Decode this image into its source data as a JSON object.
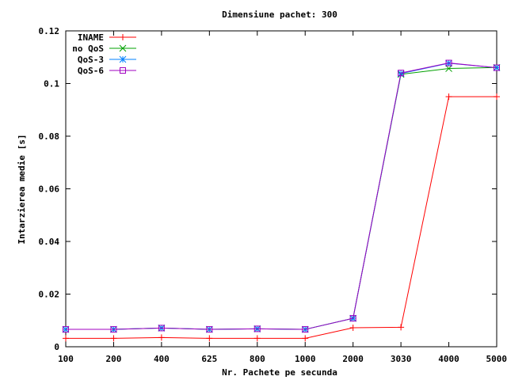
{
  "chart_data": {
    "type": "line",
    "title": "Dimensiune pachet: 300",
    "xlabel": "Nr. Pachete pe secunda",
    "ylabel": "Intarzierea medie [s]",
    "categories": [
      "100",
      "200",
      "400",
      "625",
      "800",
      "1000",
      "2000",
      "3030",
      "4000",
      "5000"
    ],
    "y_ticks": [
      "0",
      "0.02",
      "0.04",
      "0.06",
      "0.08",
      "0.1",
      "0.12"
    ],
    "ylim": [
      0,
      0.12
    ],
    "grid": false,
    "legend_position": "top-left",
    "series": [
      {
        "name": "INAME",
        "color": "#ff0000",
        "marker": "plus",
        "values": [
          0.0032,
          0.0032,
          0.0035,
          0.0032,
          0.0032,
          0.0032,
          0.0072,
          0.0074,
          0.095,
          0.095
        ]
      },
      {
        "name": "no QoS",
        "color": "#00a000",
        "marker": "cross",
        "values": [
          0.0066,
          0.0066,
          0.0071,
          0.0066,
          0.0068,
          0.0066,
          0.0108,
          0.1035,
          0.1057,
          0.1061
        ]
      },
      {
        "name": "QoS-3",
        "color": "#0080ff",
        "marker": "asterisk",
        "values": [
          0.0066,
          0.0066,
          0.0071,
          0.0066,
          0.0068,
          0.0066,
          0.0108,
          0.1038,
          0.1077,
          0.106
        ]
      },
      {
        "name": "QoS-6",
        "color": "#a000c0",
        "marker": "square",
        "values": [
          0.0066,
          0.0066,
          0.0071,
          0.0066,
          0.0068,
          0.0066,
          0.0108,
          0.104,
          0.1078,
          0.106
        ]
      }
    ]
  }
}
